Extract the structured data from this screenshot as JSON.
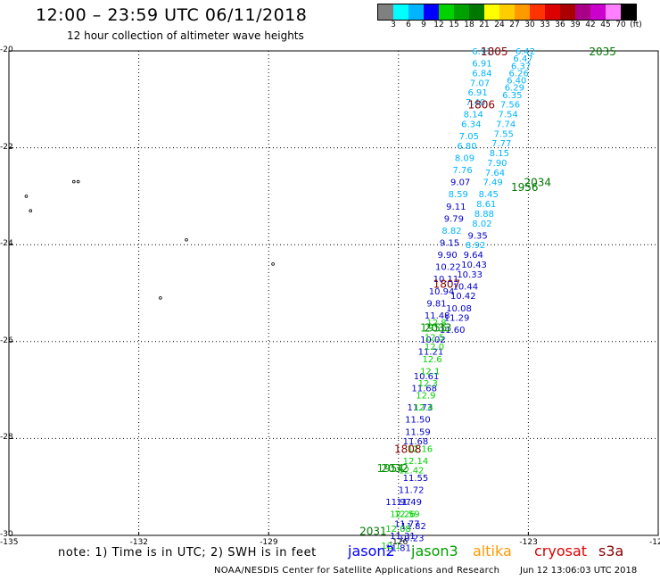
{
  "header": {
    "title": "12:00 – 23:59 UTC 06/11/2018",
    "subtitle": "12 hour collection of altimeter wave heights"
  },
  "colorbar": {
    "colors": [
      "#808080",
      "#00ffff",
      "#00b4ff",
      "#0000ff",
      "#00d200",
      "#00a000",
      "#007800",
      "#ffff00",
      "#ffcc00",
      "#ff9900",
      "#ff3300",
      "#dd0000",
      "#aa0000",
      "#aa0088",
      "#cc00cc",
      "#ff80ff",
      "#000000"
    ],
    "labels": [
      "3",
      "6",
      "9",
      "12",
      "15",
      "18",
      "21",
      "24",
      "27",
      "30",
      "33",
      "36",
      "39",
      "42",
      "45",
      "70",
      "(ft)"
    ]
  },
  "axes": {
    "y_ticks": [
      "-20",
      "-22",
      "-24",
      "-26",
      "-28",
      "-30"
    ],
    "x_ticks": [
      "-135",
      "-132",
      "-129",
      "-126",
      "-123",
      "-120"
    ],
    "lat_range": [
      -30,
      -20
    ],
    "lon_range": [
      -135,
      -120
    ]
  },
  "swh_colors": {
    "s6": "#00b4ff",
    "s9": "#00b4ff",
    "s12": "#0000cd",
    "s15": "#00d200",
    "s18": "#00a000"
  },
  "track_labels": [
    {
      "text": "1805",
      "lon": -124.1,
      "lat": -20.0,
      "color": "#880000"
    },
    {
      "text": "2035",
      "lon": -121.6,
      "lat": -20.0,
      "color": "#007800"
    },
    {
      "text": "1806",
      "lon": -124.4,
      "lat": -21.1,
      "color": "#880000"
    },
    {
      "text": "2034",
      "lon": -123.1,
      "lat": -22.7,
      "color": "#007800"
    },
    {
      "text": "1956",
      "lon": -123.4,
      "lat": -22.8,
      "color": "#007800"
    },
    {
      "text": "1807",
      "lon": -125.2,
      "lat": -24.8,
      "color": "#880000"
    },
    {
      "text": "2033",
      "lon": -125.4,
      "lat": -25.7,
      "color": "#007800"
    },
    {
      "text": "1955",
      "lon": -125.5,
      "lat": -25.7,
      "color": "#00a000"
    },
    {
      "text": "1808",
      "lon": -126.1,
      "lat": -28.2,
      "color": "#880000"
    },
    {
      "text": "2032",
      "lon": -126.4,
      "lat": -28.6,
      "color": "#007800"
    },
    {
      "text": "1954",
      "lon": -126.5,
      "lat": -28.6,
      "color": "#00a000"
    },
    {
      "text": "2031",
      "lon": -126.9,
      "lat": -29.9,
      "color": "#007800"
    }
  ],
  "swh_points": [
    [
      "6.91",
      -124.3,
      -20.0,
      "s9"
    ],
    [
      "6.91",
      -124.3,
      -20.25,
      "s9"
    ],
    [
      "6.84",
      -124.3,
      -20.45,
      "s9"
    ],
    [
      "7.07",
      -124.35,
      -20.65,
      "s9"
    ],
    [
      "6.91",
      -124.4,
      -20.85,
      "s9"
    ],
    [
      "7.40",
      -124.45,
      -21.05,
      "s9"
    ],
    [
      "8.14",
      -124.5,
      -21.3,
      "s9"
    ],
    [
      "6.34",
      -124.55,
      -21.5,
      "s9"
    ],
    [
      "7.05",
      -124.6,
      -21.75,
      "s9"
    ],
    [
      "6.80",
      -124.65,
      -21.95,
      "s9"
    ],
    [
      "8.09",
      -124.7,
      -22.2,
      "s9"
    ],
    [
      "7.76",
      -124.75,
      -22.45,
      "s9"
    ],
    [
      "9.07",
      -124.8,
      -22.7,
      "s12"
    ],
    [
      "8.59",
      -124.85,
      -22.95,
      "s9"
    ],
    [
      "9.11",
      -124.9,
      -23.2,
      "s12"
    ],
    [
      "9.79",
      -124.95,
      -23.45,
      "s12"
    ],
    [
      "8.82",
      -125.0,
      -23.7,
      "s9"
    ],
    [
      "9.15",
      -125.05,
      -23.95,
      "s12"
    ],
    [
      "9.90",
      -125.1,
      -24.2,
      "s12"
    ],
    [
      "10.22",
      -125.15,
      -24.45,
      "s12"
    ],
    [
      "10.11",
      -125.2,
      -24.7,
      "s12"
    ],
    [
      "10.94",
      -125.3,
      -24.95,
      "s12"
    ],
    [
      "9.81",
      -125.35,
      -25.2,
      "s12"
    ],
    [
      "11.48",
      -125.4,
      -25.45,
      "s12"
    ],
    [
      "10.02",
      -125.5,
      -25.95,
      "s12"
    ],
    [
      "11.21",
      -125.55,
      -26.2,
      "s12"
    ],
    [
      "10.61",
      -125.65,
      -26.7,
      "s12"
    ],
    [
      "11.68",
      -125.7,
      -26.95,
      "s12"
    ],
    [
      "11.73",
      -125.8,
      -27.35,
      "s12"
    ],
    [
      "11.50",
      -125.85,
      -27.6,
      "s12"
    ],
    [
      "11.59",
      -125.85,
      -27.85,
      "s12"
    ],
    [
      "11.68",
      -125.9,
      -28.05,
      "s12"
    ],
    [
      "11.55",
      -125.9,
      -28.8,
      "s12"
    ],
    [
      "11.72",
      -126.0,
      -29.05,
      "s12"
    ],
    [
      "11.49",
      -126.05,
      -29.3,
      "s12"
    ],
    [
      "11.97",
      -126.3,
      -29.3,
      "s12"
    ],
    [
      "11.77",
      -126.1,
      -29.75,
      "s12"
    ],
    [
      "11.82",
      -125.95,
      -29.8,
      "s12"
    ],
    [
      "11.31",
      -126.2,
      -30.0,
      "s12"
    ],
    [
      "10.23",
      -126.0,
      -30.05,
      "s12"
    ],
    [
      "11.81",
      -126.3,
      -30.25,
      "s12"
    ],
    [
      "6.42",
      -123.3,
      -20.0,
      "s9"
    ],
    [
      "6.47",
      -123.35,
      -20.15,
      "s9"
    ],
    [
      "6.37",
      -123.4,
      -20.3,
      "s9"
    ],
    [
      "6.26",
      -123.45,
      -20.45,
      "s9"
    ],
    [
      "6.40",
      -123.5,
      -20.6,
      "s9"
    ],
    [
      "6.29",
      -123.55,
      -20.75,
      "s9"
    ],
    [
      "6.35",
      -123.6,
      -20.9,
      "s9"
    ],
    [
      "7.56",
      -123.65,
      -21.1,
      "s9"
    ],
    [
      "7.54",
      -123.7,
      -21.3,
      "s9"
    ],
    [
      "7.74",
      -123.75,
      -21.5,
      "s9"
    ],
    [
      "7.55",
      -123.8,
      -21.7,
      "s9"
    ],
    [
      "7.77",
      -123.85,
      -21.9,
      "s9"
    ],
    [
      "8.15",
      -123.9,
      -22.1,
      "s9"
    ],
    [
      "7.90",
      -123.95,
      -22.3,
      "s9"
    ],
    [
      "7.64",
      -124.0,
      -22.5,
      "s9"
    ],
    [
      "7.49",
      -124.05,
      -22.7,
      "s9"
    ],
    [
      "8.45",
      -124.15,
      -22.95,
      "s9"
    ],
    [
      "8.61",
      -124.2,
      -23.15,
      "s9"
    ],
    [
      "8.88",
      -124.25,
      -23.35,
      "s9"
    ],
    [
      "8.02",
      -124.3,
      -23.55,
      "s9"
    ],
    [
      "9.35",
      -124.4,
      -23.8,
      "s12"
    ],
    [
      "8.92",
      -124.45,
      -24.0,
      "s9"
    ],
    [
      "9.64",
      -124.5,
      -24.2,
      "s12"
    ],
    [
      "10.43",
      -124.55,
      -24.4,
      "s12"
    ],
    [
      "10.33",
      -124.65,
      -24.6,
      "s12"
    ],
    [
      "10.44",
      -124.75,
      -24.85,
      "s12"
    ],
    [
      "10.42",
      -124.8,
      -25.05,
      "s12"
    ],
    [
      "10.08",
      -124.9,
      -25.3,
      "s12"
    ],
    [
      "11.29",
      -124.95,
      -25.5,
      "s12"
    ],
    [
      "11.60",
      -125.05,
      -25.75,
      "s12"
    ],
    [
      "12.8",
      -125.35,
      -25.6,
      "s15"
    ],
    [
      "12.5",
      -125.4,
      -25.9,
      "s15"
    ],
    [
      "12.0",
      -125.4,
      -26.1,
      "s15"
    ],
    [
      "12.6",
      -125.45,
      -26.35,
      "s15"
    ],
    [
      "12.1",
      -125.5,
      -26.6,
      "s15"
    ],
    [
      "12.3",
      -125.55,
      -26.85,
      "s15"
    ],
    [
      "12.9",
      -125.6,
      -27.1,
      "s15"
    ],
    [
      "12.4",
      -125.65,
      -27.35,
      "s15"
    ],
    [
      "12.16",
      -125.8,
      -28.2,
      "s15"
    ],
    [
      "12.14",
      -125.9,
      -28.45,
      "s15"
    ],
    [
      "12.42",
      -126.0,
      -28.65,
      "s15"
    ],
    [
      "12.59",
      -126.1,
      -29.55,
      "s15"
    ],
    [
      "12.26",
      -126.2,
      -29.55,
      "s15"
    ],
    [
      "12.08",
      -126.3,
      -29.85,
      "s15"
    ],
    [
      "12.1",
      -126.4,
      -30.2,
      "s15"
    ]
  ],
  "islands": [
    [
      -133.5,
      -22.7
    ],
    [
      -133.4,
      -22.7
    ],
    [
      -134.6,
      -23.0
    ],
    [
      -134.5,
      -23.3
    ],
    [
      -130.9,
      -23.9
    ],
    [
      -131.5,
      -25.1
    ],
    [
      -128.9,
      -24.4
    ]
  ],
  "footer": {
    "note": "note: 1) Time is in UTC; 2) SWH is in feet",
    "satellites": [
      {
        "name": "jason2",
        "color": "#0000ff"
      },
      {
        "name": "jason3",
        "color": "#00a000"
      },
      {
        "name": "altika",
        "color": "#ff9900"
      },
      {
        "name": "cryosat",
        "color": "#dd0000"
      },
      {
        "name": "s3a",
        "color": "#880000"
      }
    ],
    "credit": "NOAA/NESDIS Center for Satellite Applications and Research",
    "stamp": "Jun 12 13:06:03 UTC 2018"
  }
}
